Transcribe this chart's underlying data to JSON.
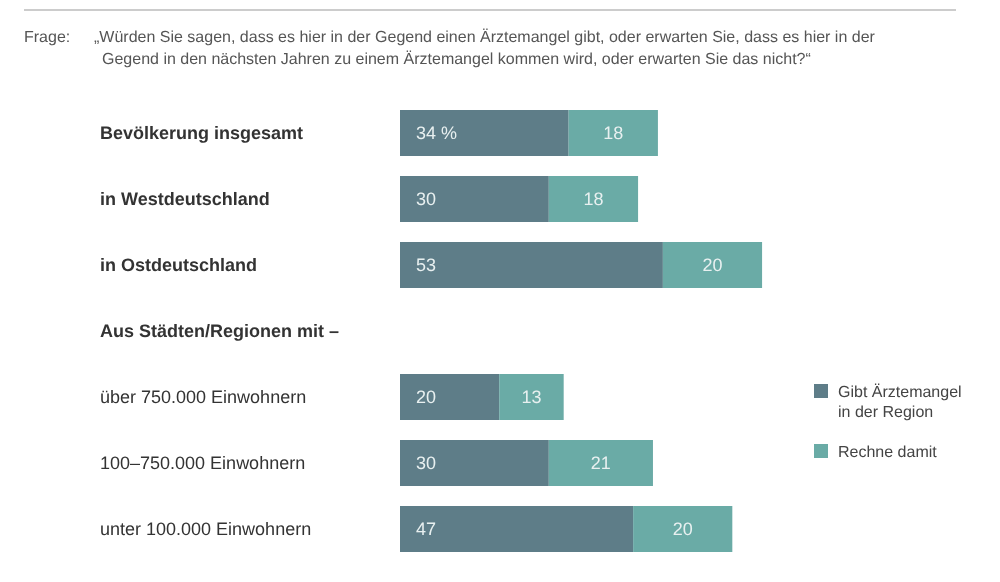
{
  "chart_data": {
    "type": "bar",
    "orientation": "horizontal",
    "stacked": true,
    "title": "Frage:",
    "subtitle": "„Würden Sie sagen, dass es hier in der Gegend einen Ärztemangel gibt, oder erwarten Sie, dass es hier in der Gegend in den nächsten Jahren zu einem Ärztemangel kommen wird, oder erwarten Sie das nicht?“",
    "categories": [
      "Bevölkerung insgesamt",
      "in Westdeutschland",
      "in Ostdeutschland",
      "Aus Städten/Regionen mit –",
      "über 750.000 Einwohnern",
      "100–750.000 Einwohnern",
      "unter 100.000 Einwohnern"
    ],
    "series": [
      {
        "name": "Gibt Ärztemangel in der Region",
        "color": "#5e7d88",
        "values": [
          34,
          30,
          53,
          null,
          20,
          30,
          47
        ],
        "value_labels": [
          "34 %",
          "30",
          "53",
          null,
          "20",
          "30",
          "47"
        ]
      },
      {
        "name": "Rechne damit",
        "color": "#6aaba6",
        "values": [
          18,
          18,
          20,
          null,
          13,
          21,
          20
        ],
        "value_labels": [
          "18",
          "18",
          "20",
          null,
          "13",
          "21",
          "20"
        ]
      }
    ],
    "legend": "right"
  }
}
